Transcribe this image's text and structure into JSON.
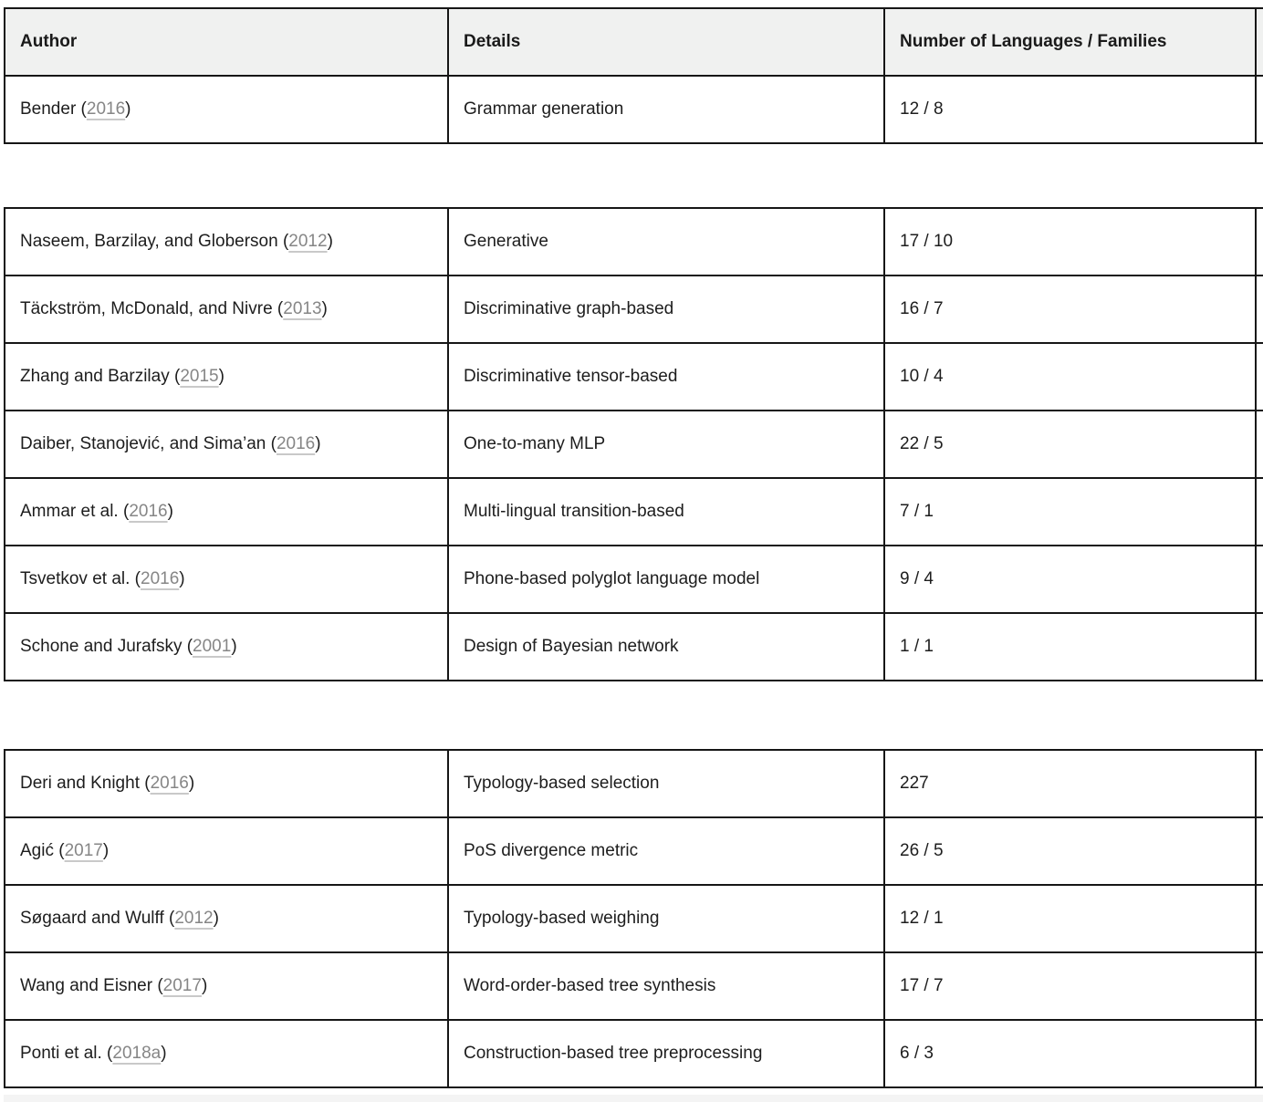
{
  "columns": [
    "Author",
    "Details",
    "Number of Languages / Families"
  ],
  "sections": [
    {
      "rows": [
        {
          "author_pre": "Bender (",
          "year": "2016",
          "author_post": ")",
          "details": "Grammar generation",
          "count": "12 / 8"
        }
      ]
    },
    {
      "rows": [
        {
          "author_pre": "Naseem, Barzilay, and Globerson (",
          "year": "2012",
          "author_post": ")",
          "details": "Generative",
          "count": "17 / 10"
        },
        {
          "author_pre": "Täckström, McDonald, and Nivre (",
          "year": "2013",
          "author_post": ")",
          "details": "Discriminative graph-based",
          "count": "16 / 7"
        },
        {
          "author_pre": "Zhang and Barzilay (",
          "year": "2015",
          "author_post": ")",
          "details": "Discriminative tensor-based",
          "count": "10 / 4"
        },
        {
          "author_pre": "Daiber, Stanojević, and Sima’an (",
          "year": "2016",
          "author_post": ")",
          "details": "One-to-many MLP",
          "count": "22 / 5"
        },
        {
          "author_pre": "Ammar et al. (",
          "year": "2016",
          "author_post": ")",
          "details": "Multi-lingual transition-based",
          "count": "7 / 1"
        },
        {
          "author_pre": "Tsvetkov et al. (",
          "year": "2016",
          "author_post": ")",
          "details": "Phone-based polyglot language model",
          "count": "9 / 4"
        },
        {
          "author_pre": "Schone and Jurafsky (",
          "year": "2001",
          "author_post": ")",
          "details": "Design of Bayesian network",
          "count": "1 / 1"
        }
      ]
    },
    {
      "rows": [
        {
          "author_pre": "Deri and Knight (",
          "year": "2016",
          "author_post": ")",
          "details": "Typology-based selection",
          "count": "227"
        },
        {
          "author_pre": "Agić (",
          "year": "2017",
          "author_post": ")",
          "details": "PoS divergence metric",
          "count": "26 / 5"
        },
        {
          "author_pre": "Søgaard and Wulff (",
          "year": "2012",
          "author_post": ")",
          "details": "Typology-based weighing",
          "count": "12 / 1"
        },
        {
          "author_pre": "Wang and Eisner (",
          "year": "2017",
          "author_post": ")",
          "details": "Word-order-based tree synthesis",
          "count": "17 / 7"
        },
        {
          "author_pre": "Ponti et al. (",
          "year": "2018a",
          "author_post": ")",
          "details": "Construction-based tree preprocessing",
          "count": "6 / 3"
        }
      ]
    }
  ],
  "colors": {
    "border": "#161616",
    "header_background": "#f0f1f0",
    "body_text": "#1d1d1d",
    "year_link": "#868686",
    "year_link_underline": "#c9c9c9",
    "next_section_strip": "#f4f4f4"
  }
}
